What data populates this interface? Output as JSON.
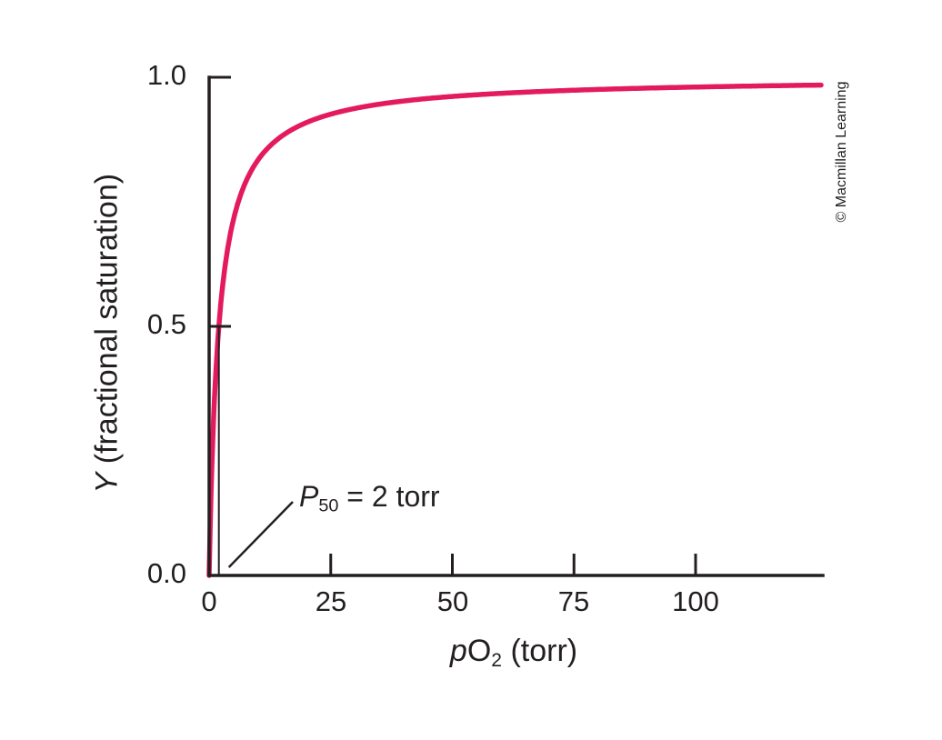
{
  "figure": {
    "credit": "© Macmillan Learning"
  },
  "labels": {
    "y_axis": {
      "italic": "Y",
      "rest": " (fractional saturation)"
    },
    "x_axis": {
      "italic": "p",
      "main": "O",
      "sub": "2",
      "rest": " (torr)"
    },
    "annotation": {
      "italic": "P",
      "sub": "50",
      "rest": " = 2 torr"
    }
  },
  "chart_data": {
    "type": "line",
    "title": "",
    "xlabel": "pO2 (torr)",
    "ylabel": "Y (fractional saturation)",
    "xlim": [
      0,
      126
    ],
    "ylim": [
      0,
      1.0
    ],
    "grid": false,
    "legend": "none",
    "x_ticks": [
      0,
      25,
      50,
      75,
      100
    ],
    "x_tick_labels": [
      "0",
      "25",
      "50",
      "75",
      "100"
    ],
    "y_ticks": [
      0.0,
      0.5,
      1.0
    ],
    "y_tick_labels": [
      "0.0",
      "0.5",
      "1.0"
    ],
    "series": [
      {
        "name": "fractional saturation Y",
        "color": "#e31b5e",
        "model": "Y = pO2 / (P50 + pO2)",
        "P50_torr": 2,
        "points": [
          [
            0,
            0
          ],
          [
            0.5,
            0.2
          ],
          [
            1,
            0.333
          ],
          [
            2,
            0.5
          ],
          [
            3,
            0.6
          ],
          [
            5,
            0.714
          ],
          [
            8,
            0.8
          ],
          [
            10,
            0.833
          ],
          [
            15,
            0.882
          ],
          [
            20,
            0.909
          ],
          [
            25,
            0.926
          ],
          [
            35,
            0.946
          ],
          [
            50,
            0.962
          ],
          [
            75,
            0.974
          ],
          [
            100,
            0.98
          ],
          [
            126,
            0.984
          ]
        ]
      }
    ],
    "p50_marker": {
      "x": 2,
      "y_from": 0.0,
      "y_to": 0.5
    },
    "annotations": [
      {
        "label": "P50 = 2 torr",
        "points_to_x": 2,
        "points_to_y": 0.0
      }
    ],
    "axis_color": "#231f20"
  }
}
